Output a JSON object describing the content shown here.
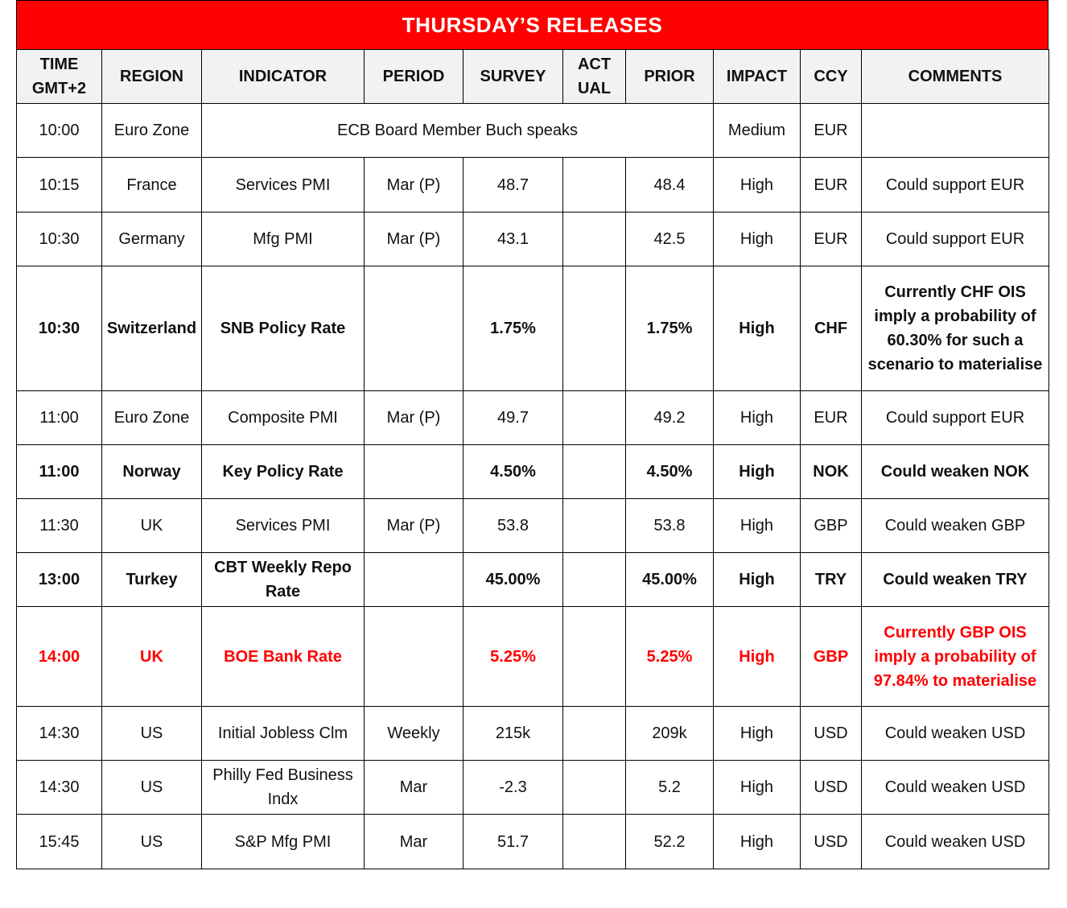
{
  "title": "THURSDAY’S  RELEASES",
  "headers": [
    [
      "TIME",
      "GMT+2"
    ],
    [
      "REGION"
    ],
    [
      "INDICATOR"
    ],
    [
      "PERIOD"
    ],
    [
      "SURVEY"
    ],
    [
      "ACT",
      "UAL"
    ],
    [
      "PRIOR"
    ],
    [
      "IMPACT"
    ],
    [
      "CCY"
    ],
    [
      "COMMENTS"
    ]
  ],
  "colors": {
    "title_bg": "#ff0000",
    "header_bg": "#f2f2f2",
    "highlight": "#ff0000"
  },
  "rows": [
    {
      "style": "normal",
      "time": "10:00",
      "region": "Euro Zone",
      "indicator": "ECB Board Member Buch speaks",
      "merged": true,
      "impact": "Medium",
      "ccy": "EUR",
      "comments": ""
    },
    {
      "style": "normal",
      "time": "10:15",
      "region": "France",
      "indicator": "Services PMI",
      "period": "Mar (P)",
      "survey": "48.7",
      "actual": "",
      "prior": "48.4",
      "impact": "High",
      "ccy": "EUR",
      "comments": "Could support EUR"
    },
    {
      "style": "normal",
      "time": "10:30",
      "region": "Germany",
      "indicator": "Mfg PMI",
      "period": "Mar (P)",
      "survey": "43.1",
      "actual": "",
      "prior": "42.5",
      "impact": "High",
      "ccy": "EUR",
      "comments": "Could support EUR"
    },
    {
      "style": "bold",
      "time": "10:30",
      "region": "Switzerland",
      "indicator": "SNB Policy Rate",
      "period": "",
      "survey": "1.75%",
      "actual": "",
      "prior": "1.75%",
      "impact": "High",
      "ccy": "CHF",
      "comments": "Currently CHF OIS imply a probability of 60.30% for such a scenario to materialise"
    },
    {
      "style": "normal",
      "time": "11:00",
      "region": "Euro Zone",
      "indicator": "Composite PMI",
      "period": "Mar (P)",
      "survey": "49.7",
      "actual": "",
      "prior": "49.2",
      "impact": "High",
      "ccy": "EUR",
      "comments": "Could support EUR"
    },
    {
      "style": "bold",
      "time": "11:00",
      "region": "Norway",
      "indicator": "Key Policy Rate",
      "period": "",
      "survey": "4.50%",
      "actual": "",
      "prior": "4.50%",
      "impact": "High",
      "ccy": "NOK",
      "comments": "Could weaken NOK"
    },
    {
      "style": "normal",
      "time": "11:30",
      "region": "UK",
      "indicator": "Services PMI",
      "period": "Mar (P)",
      "survey": "53.8",
      "actual": "",
      "prior": "53.8",
      "impact": "High",
      "ccy": "GBP",
      "comments": "Could weaken GBP"
    },
    {
      "style": "bold",
      "time": "13:00",
      "region": "Turkey",
      "indicator": "CBT Weekly Repo Rate",
      "period": "",
      "survey": "45.00%",
      "actual": "",
      "prior": "45.00%",
      "impact": "High",
      "ccy": "TRY",
      "comments": "Could weaken TRY"
    },
    {
      "style": "red",
      "time": "14:00",
      "region": "UK",
      "indicator": "BOE Bank Rate",
      "period": "",
      "survey": "5.25%",
      "actual": "",
      "prior": "5.25%",
      "impact": "High",
      "ccy": "GBP",
      "comments": "Currently GBP OIS imply a probability of 97.84% to materialise"
    },
    {
      "style": "normal",
      "time": "14:30",
      "region": "US",
      "indicator": "Initial Jobless Clm",
      "period": "Weekly",
      "survey": "215k",
      "actual": "",
      "prior": "209k",
      "impact": "High",
      "ccy": "USD",
      "comments": "Could weaken USD"
    },
    {
      "style": "normal",
      "time": "14:30",
      "region": "US",
      "indicator": "Philly Fed Business Indx",
      "period": "Mar",
      "survey": "-2.3",
      "actual": "",
      "prior": "5.2",
      "impact": "High",
      "ccy": "USD",
      "comments": "Could weaken USD"
    },
    {
      "style": "normal",
      "time": "15:45",
      "region": "US",
      "indicator": "S&P Mfg PMI",
      "period": "Mar",
      "survey": "51.7",
      "actual": "",
      "prior": "52.2",
      "impact": "High",
      "ccy": "USD",
      "comments": "Could weaken USD"
    }
  ]
}
